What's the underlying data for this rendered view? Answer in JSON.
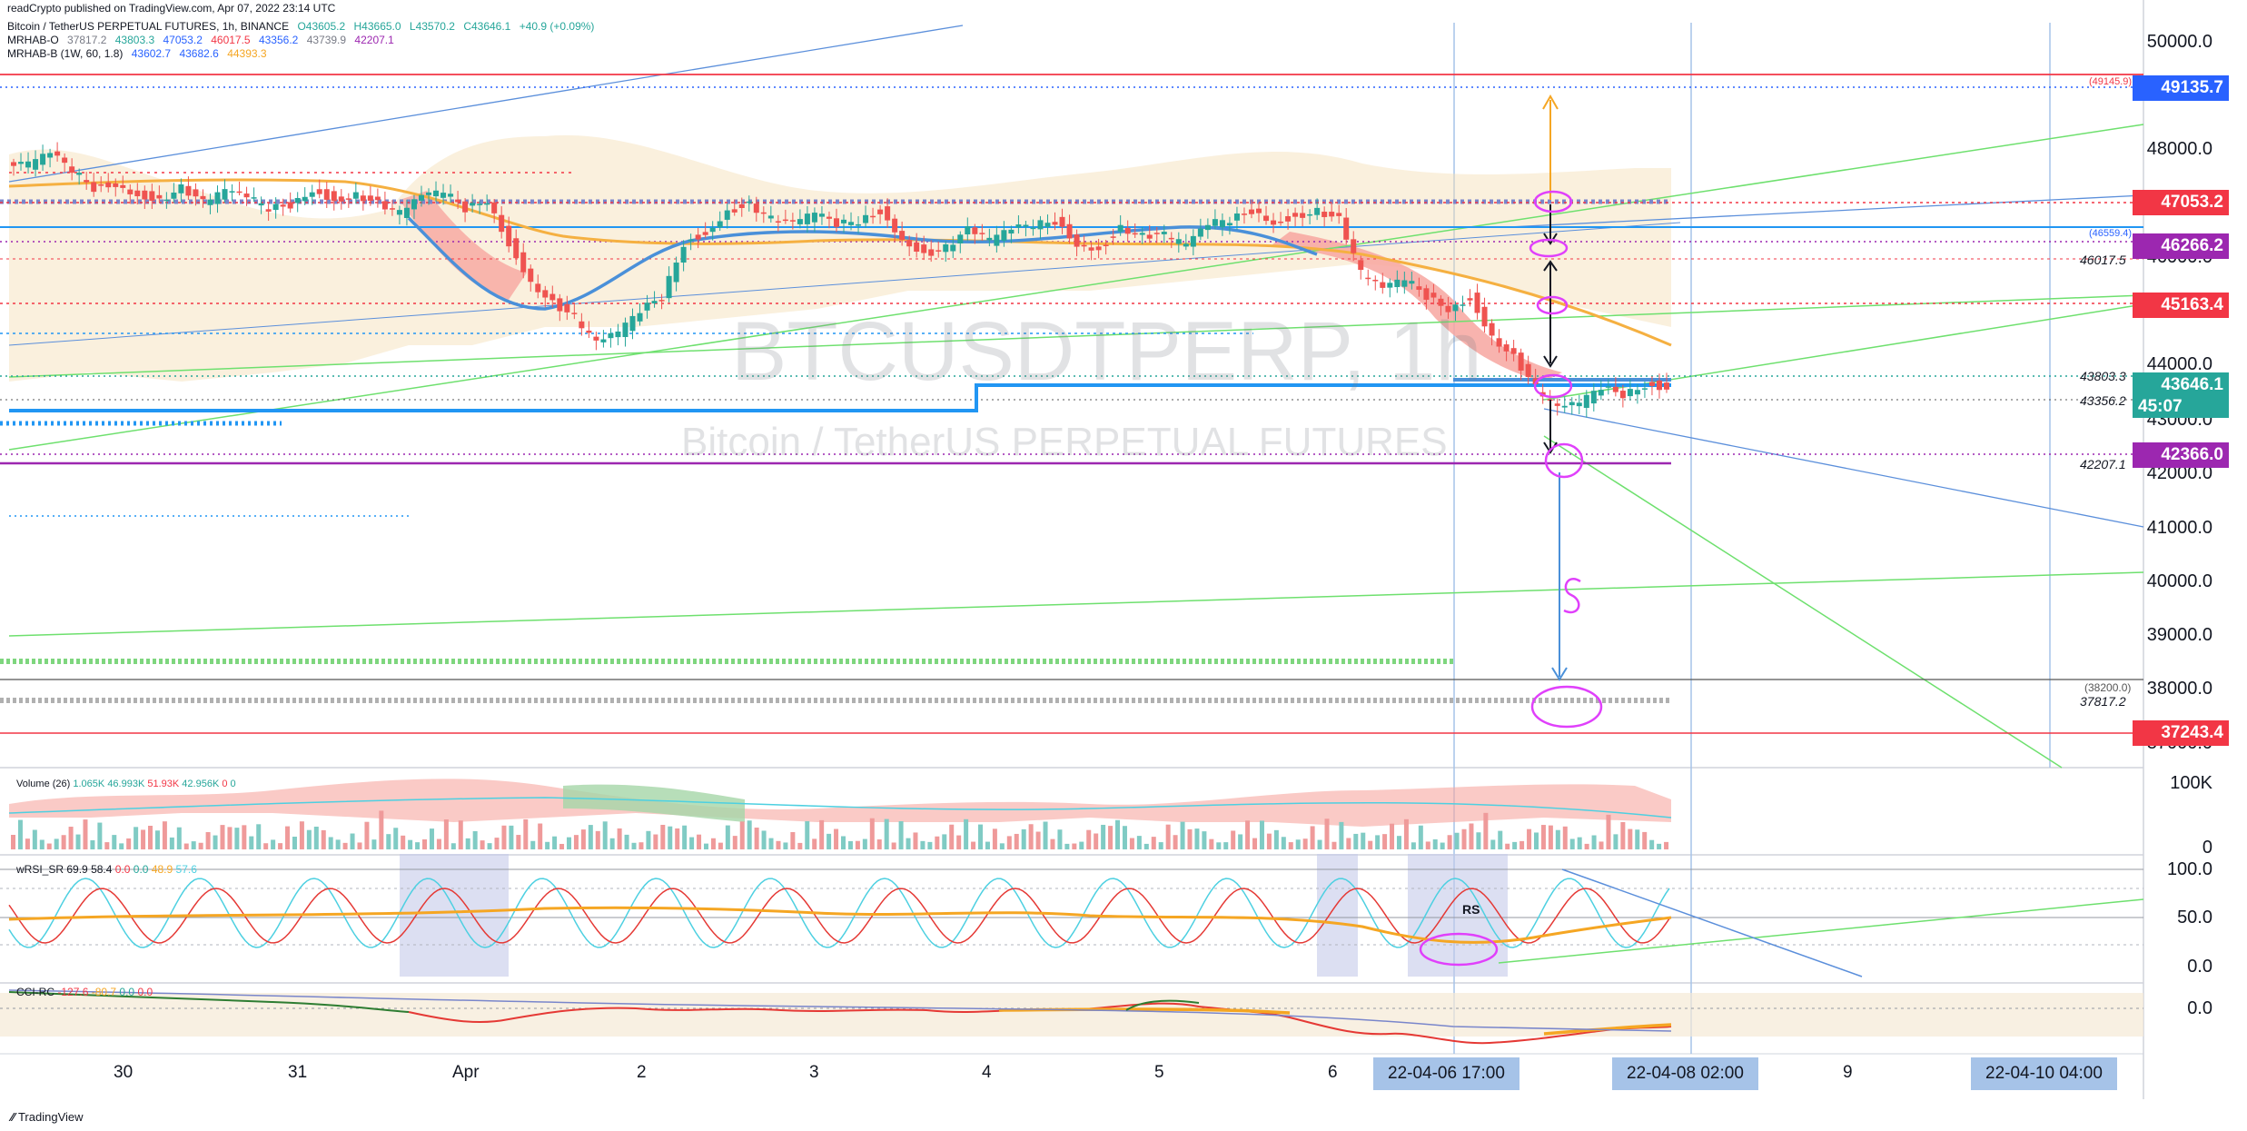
{
  "credit": "readCrypto published on TradingView.com, Apr 07, 2022 23:14 UTC",
  "header": {
    "symbol_line": "Bitcoin / TetherUS PERPETUAL FUTURES, 1h, BINANCE",
    "o": "O43605.2",
    "h": "H43665.0",
    "l": "L43570.2",
    "c": "C43646.1",
    "chg": "+40.9 (+0.09%)",
    "mrhab_o_label": "MRHAB-O",
    "mrhab_o_values": [
      "37817.2",
      "43803.3",
      "47053.2",
      "46017.5",
      "43356.2",
      "43739.9",
      "42207.1"
    ],
    "mrhab_b_label": "MRHAB-B (1W, 60, 1.8)",
    "mrhab_b_values": [
      "43602.7",
      "43682.6",
      "44393.3"
    ]
  },
  "watermark": {
    "big": "BTCUSDTPERP, 1h",
    "small": "Bitcoin / TetherUS PERPETUAL FUTURES"
  },
  "price_axis": [
    "50000.0",
    "48000.0",
    "46000.0",
    "44000.0",
    "43000.0",
    "42000.0",
    "41000.0",
    "40000.0",
    "39000.0",
    "38000.0",
    "37000.0"
  ],
  "price_tags": [
    {
      "value": "49135.7",
      "color": "#2962ff"
    },
    {
      "value": "47053.2",
      "color": "#f23645"
    },
    {
      "value": "46266.2",
      "color": "#9c27b0"
    },
    {
      "value": "45163.4",
      "color": "#f23645"
    },
    {
      "value": "43646.1",
      "sub": "45:07",
      "color": "#26a69a"
    },
    {
      "value": "42366.0",
      "color": "#9c27b0"
    },
    {
      "value": "37243.4",
      "color": "#f23645"
    }
  ],
  "line_labels": {
    "l49145": "(49145.9)",
    "l46559": "(46559.4)",
    "l46017": "46017.5",
    "l43803": "43803.3",
    "l43356": "43356.2",
    "l42207": "42207.1",
    "l38200": "(38200.0)",
    "l37817": "37817.2"
  },
  "volume": {
    "label": "Volume (26)",
    "v1": "1.065K",
    "v2": "46.993K",
    "v3": "51.93K",
    "v4": "42.956K",
    "v5": "0",
    "v6": "0",
    "axis": [
      "100K",
      "0"
    ]
  },
  "wrsi": {
    "label": "wRSI_SR",
    "values": [
      "69.9",
      "58.4",
      "0.0",
      "0.0",
      "48.9",
      "57.6"
    ],
    "axis": [
      "100.0",
      "50.0",
      "0.0"
    ],
    "annotation": "RS"
  },
  "cci": {
    "label": "CCI-RC",
    "values": [
      "-127.6",
      "-80.7",
      "0.0",
      "0.0"
    ],
    "axis": [
      "0.0"
    ]
  },
  "time_axis": [
    "30",
    "31",
    "Apr",
    "2",
    "3",
    "4",
    "5",
    "6",
    "9"
  ],
  "time_highlights": [
    "22-04-06   17:00",
    "22-04-08   02:00",
    "22-04-10   04:00"
  ],
  "footer": "TradingView",
  "chart_data": {
    "type": "candlestick",
    "title": "Bitcoin / TetherUS PERPETUAL FUTURES, 1h, BINANCE",
    "ylim": [
      37000,
      50000
    ],
    "ohlc_last": {
      "open": 43605.2,
      "high": 43665.0,
      "low": 43570.2,
      "close": 43646.1
    },
    "close_path": [
      47700,
      47900,
      47600,
      47300,
      47400,
      47200,
      47100,
      47300,
      47000,
      47200,
      47100,
      46900,
      47000,
      47300,
      47100,
      47200,
      47000,
      46800,
      47100,
      47200,
      46900,
      47100,
      46300,
      45600,
      45200,
      44900,
      44400,
      44600,
      45000,
      45300,
      46300,
      46500,
      46900,
      47000,
      46700,
      46600,
      46800,
      46600,
      46700,
      46900,
      46400,
      46100,
      46200,
      46500,
      46300,
      46500,
      46600,
      46700,
      46300,
      46200,
      46600,
      46400,
      46400,
      46200,
      46600,
      46700,
      46900,
      46700,
      46800,
      46900,
      46700,
      45700,
      45400,
      45600,
      45300,
      45100,
      45300,
      44600,
      44200,
      43600,
      43200,
      43300,
      43600,
      43500,
      43700,
      43650
    ],
    "horizontal_levels": [
      49145.9,
      49135.7,
      47053.2,
      46559.4,
      46266.2,
      46017.5,
      45163.4,
      43803.3,
      43646.1,
      43356.2,
      42366.0,
      42207.1,
      38200.0,
      37817.2,
      37243.4
    ],
    "x_ticks": [
      "30",
      "31",
      "Apr",
      "2",
      "3",
      "4",
      "5",
      "6",
      "9"
    ],
    "panes": [
      {
        "name": "Volume (26)",
        "axis": [
          "100K",
          "0"
        ]
      },
      {
        "name": "wRSI_SR",
        "axis": [
          "100.0",
          "50.0",
          "0.0"
        ]
      },
      {
        "name": "CCI-RC",
        "axis": [
          "0.0"
        ]
      }
    ]
  }
}
